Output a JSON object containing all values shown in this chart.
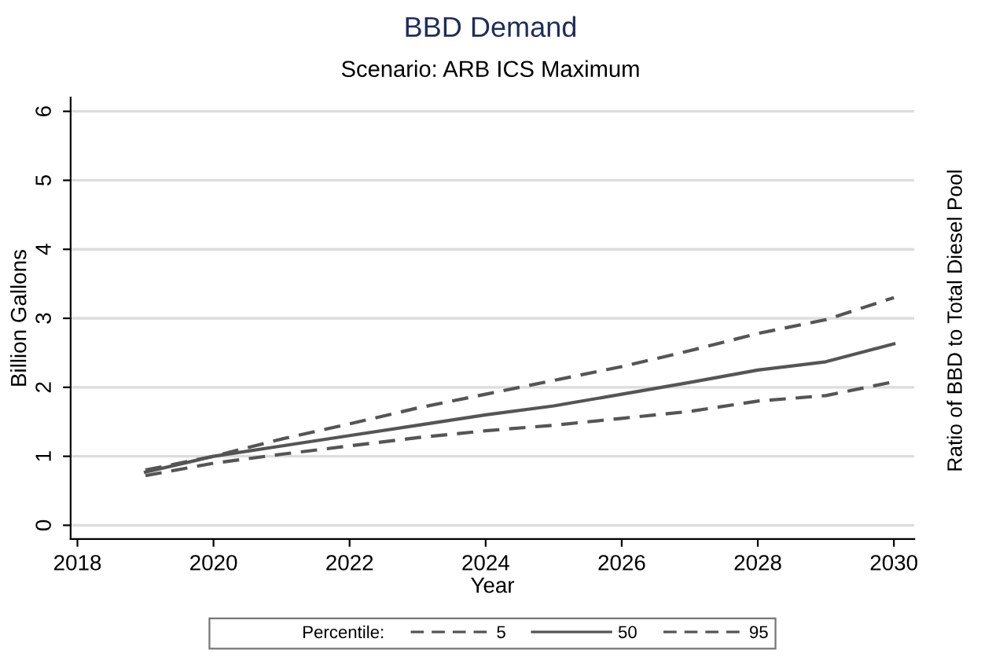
{
  "chart_data": {
    "type": "line",
    "title": "BBD Demand",
    "subtitle": "Scenario: ARB ICS Maximum",
    "xlabel": "Year",
    "ylabel": "Billion Gallons",
    "annotations": [
      "Ratio of BBD to Total Diesel Pool"
    ],
    "legend_title": "Percentile:",
    "legend": "bottom",
    "grid": "y",
    "x": [
      2019,
      2020,
      2021,
      2022,
      2023,
      2024,
      2025,
      2026,
      2027,
      2028,
      2029,
      2030
    ],
    "series": [
      {
        "name": "5",
        "color": "#555555",
        "line_style": "dashed",
        "values": [
          0.72,
          0.9,
          1.03,
          1.15,
          1.27,
          1.37,
          1.45,
          1.55,
          1.65,
          1.8,
          1.88,
          2.08
        ]
      },
      {
        "name": "50",
        "color": "#555555",
        "line_style": "solid",
        "values": [
          0.77,
          1.0,
          1.15,
          1.3,
          1.45,
          1.6,
          1.73,
          1.9,
          2.07,
          2.25,
          2.37,
          2.63
        ]
      },
      {
        "name": "95",
        "color": "#555555",
        "line_style": "dashed",
        "values": [
          0.8,
          1.0,
          1.25,
          1.47,
          1.7,
          1.9,
          2.1,
          2.3,
          2.53,
          2.78,
          2.98,
          3.3
        ]
      }
    ],
    "xlim": [
      2017.9,
      2030.3
    ],
    "xticks": [
      2018,
      2020,
      2022,
      2024,
      2026,
      2028,
      2030
    ],
    "ylim": [
      -0.2,
      6.2
    ],
    "yticks": [
      0,
      1,
      2,
      3,
      4,
      5,
      6
    ]
  }
}
